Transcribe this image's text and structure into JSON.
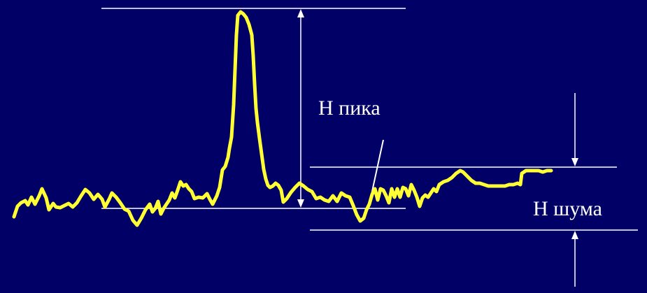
{
  "labels": {
    "peak_height": "H пика",
    "noise_height": "H шума"
  },
  "colors": {
    "background": "#000066",
    "signal": "#ffff33",
    "guides": "#ffffff"
  }
}
